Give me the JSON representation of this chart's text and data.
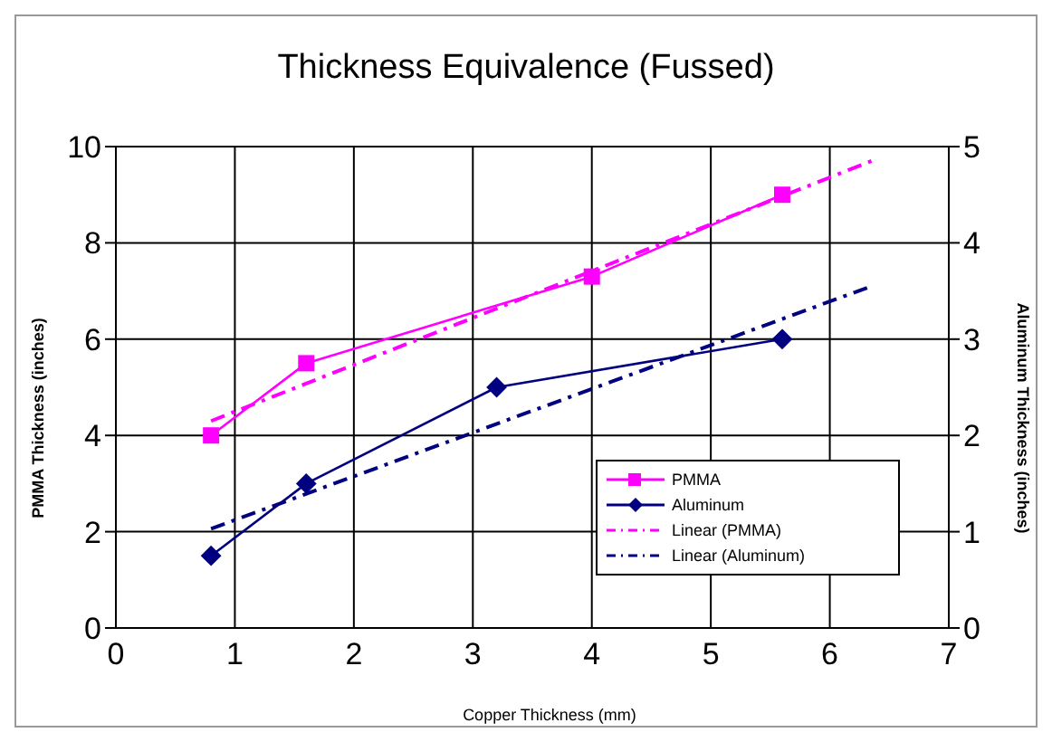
{
  "chart_data": {
    "type": "line",
    "title": "Thickness Equivalence (Fussed)",
    "xlabel": "Copper Thickness (mm)",
    "ylabel": "PMMA Thickness (inches)",
    "y2label": "Aluminum Thickness (inches)",
    "xlim": [
      0,
      7
    ],
    "xticks": [
      0,
      1,
      2,
      3,
      4,
      5,
      6,
      7
    ],
    "ylim": [
      0,
      10
    ],
    "yticks": [
      0,
      2,
      4,
      6,
      8,
      10
    ],
    "y2lim": [
      0,
      5
    ],
    "y2ticks": [
      0,
      1,
      2,
      3,
      4,
      5
    ],
    "grid": true,
    "legend": "bottom right",
    "series": [
      {
        "name": "PMMA",
        "color": "#ff00ff",
        "x": [
          0.8,
          1.6,
          4,
          5.6
        ],
        "values": [
          4,
          5.5,
          7.3,
          9
        ],
        "marker": "square",
        "line_style": "solid"
      },
      {
        "name": "Aluminum",
        "color": "#000080",
        "x": [
          0.8,
          1.6,
          3.2,
          5.6
        ],
        "values": [
          0.75,
          1.5,
          2.5,
          3
        ],
        "marker": "diamond",
        "line_style": "solid",
        "axis": "y2"
      },
      {
        "name": "Linear (PMMA)",
        "color": "#ff00ff",
        "x": [
          0.8,
          6.35
        ],
        "values": [
          4.3,
          9.7
        ],
        "marker": "none",
        "line_style": "dashed"
      },
      {
        "name": "Linear (Aluminum)",
        "color": "#000080",
        "x": [
          0.8,
          6.35
        ],
        "values": [
          1.03,
          3.55
        ],
        "marker": "none",
        "line_style": "dashed",
        "axis": "y2"
      }
    ]
  }
}
